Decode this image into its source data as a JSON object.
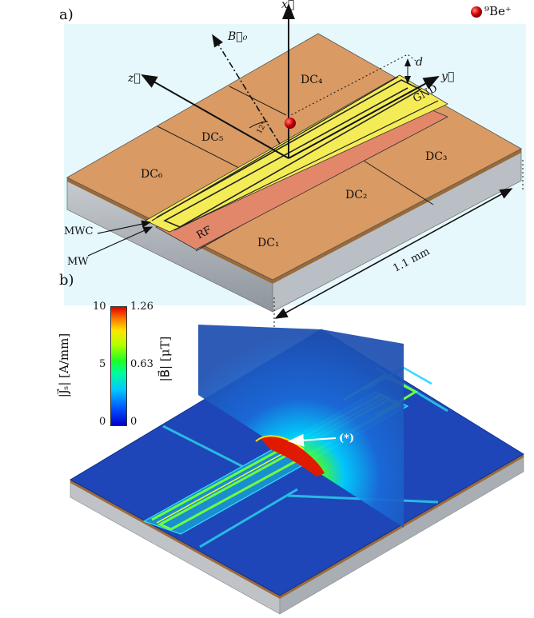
{
  "panels": {
    "a": "a)",
    "b": "b)"
  },
  "ion_label": "⁹Be⁺",
  "axes": {
    "x": "x⃗",
    "y": "y⃗",
    "z": "z⃗",
    "b0": "B⃗₀"
  },
  "angle_label": "12°",
  "d_label": "d",
  "dc": {
    "dc1": "DC₁",
    "dc2": "DC₂",
    "dc3": "DC₃",
    "dc4": "DC₄",
    "dc5": "DC₅",
    "dc6": "DC₆"
  },
  "gnd": "GND",
  "rf": "RF",
  "mwc": "MWC",
  "mw": "MW",
  "size_label": "1.1 mm",
  "colorbar": {
    "j_axis_label": "|J⃗ₛ| [A/mm]",
    "b_axis_label": "|B⃗| [μT]",
    "j_ticks": [
      "10",
      "5",
      "0"
    ],
    "b_ticks": [
      "1.26",
      "0.63",
      "0"
    ]
  },
  "marker": "(*)"
}
